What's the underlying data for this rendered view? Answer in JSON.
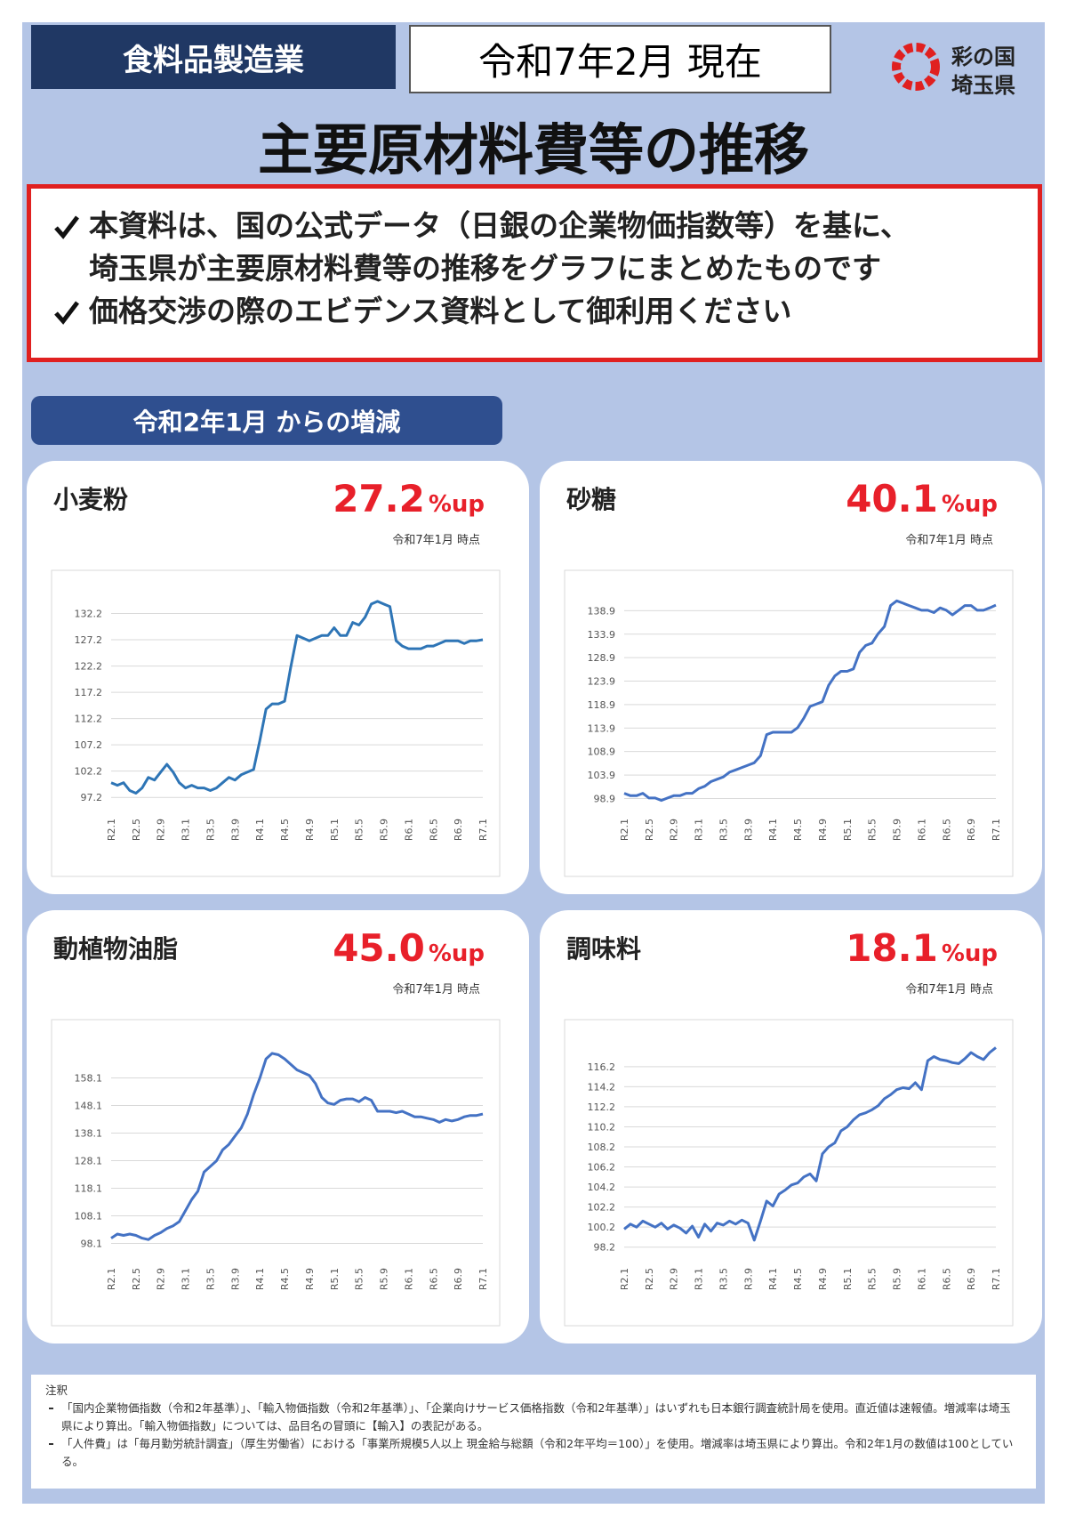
{
  "header": {
    "industry": "食料品製造業",
    "date": "令和7年2月 現在",
    "logo_line1": "彩の国",
    "logo_line2": "埼玉県",
    "title": "主要原材料費等の推移"
  },
  "notice": {
    "items": [
      {
        "lines": [
          "本資料は、国の公式データ（日銀の企業物価指数等）を基に、",
          "埼玉県が主要原材料費等の推移をグラフにまとめたものです"
        ]
      },
      {
        "lines": [
          "価格交渉の際のエビデンス資料として御利用ください"
        ]
      }
    ]
  },
  "section_label": "令和2年1月 からの増減",
  "chart_data": [
    {
      "type": "line",
      "title": "小麦粉",
      "change": 27.2,
      "change_unit": "%up",
      "as_of": "令和7年1月 時点",
      "categories": [
        "R2.1",
        null,
        null,
        null,
        "R2.5",
        null,
        null,
        null,
        "R2.9",
        null,
        null,
        null,
        "R3.1",
        null,
        null,
        null,
        "R3.5",
        null,
        null,
        null,
        "R3.9",
        null,
        null,
        null,
        "R4.1",
        null,
        null,
        null,
        "R4.5",
        null,
        null,
        null,
        "R4.9",
        null,
        null,
        null,
        "R5.1",
        null,
        null,
        null,
        "R5.5",
        null,
        null,
        null,
        "R5.9",
        null,
        null,
        null,
        "R6.1",
        null,
        null,
        null,
        "R6.5",
        null,
        null,
        null,
        "R6.9",
        null,
        null,
        null,
        "R7.1"
      ],
      "series": [
        {
          "color": "#2e75b6",
          "values": [
            100,
            99.5,
            100,
            98.5,
            98,
            99,
            101,
            100.5,
            102,
            103.5,
            102,
            100,
            99,
            99.5,
            99,
            99,
            98.5,
            99,
            100,
            101,
            100.5,
            101.5,
            102,
            102.5,
            108,
            114,
            115,
            115,
            115.5,
            122,
            128,
            127.5,
            127,
            127.5,
            128,
            128,
            129.5,
            128,
            128,
            130.5,
            130,
            131.5,
            134,
            134.5,
            134,
            133.5,
            127,
            126,
            125.5,
            125.5,
            125.5,
            126,
            126,
            126.5,
            127,
            127,
            127,
            126.5,
            127,
            127,
            127.2
          ]
        }
      ],
      "ylim": [
        95.2,
        137.2
      ],
      "yticks": [
        97.2,
        102.2,
        107.2,
        112.2,
        117.2,
        122.2,
        127.2,
        132.2
      ],
      "grid": true
    },
    {
      "type": "line",
      "title": "砂糖",
      "change": 40.1,
      "change_unit": "%up",
      "as_of": "令和7年1月 時点",
      "categories": [
        "R2.1",
        null,
        null,
        null,
        "R2.5",
        null,
        null,
        null,
        "R2.9",
        null,
        null,
        null,
        "R3.1",
        null,
        null,
        null,
        "R3.5",
        null,
        null,
        null,
        "R3.9",
        null,
        null,
        null,
        "R4.1",
        null,
        null,
        null,
        "R4.5",
        null,
        null,
        null,
        "R4.9",
        null,
        null,
        null,
        "R5.1",
        null,
        null,
        null,
        "R5.5",
        null,
        null,
        null,
        "R5.9",
        null,
        null,
        null,
        "R6.1",
        null,
        null,
        null,
        "R6.5",
        null,
        null,
        null,
        "R6.9",
        null,
        null,
        null,
        "R7.1"
      ],
      "series": [
        {
          "color": "#4472c4",
          "values": [
            100,
            99.5,
            99.5,
            100,
            99,
            99,
            98.5,
            99,
            99.5,
            99.5,
            100,
            100,
            101,
            101.5,
            102.5,
            103,
            103.5,
            104.5,
            105,
            105.5,
            106,
            106.5,
            108,
            112.5,
            113,
            113,
            113,
            113,
            114,
            116,
            118.5,
            119,
            119.5,
            123,
            125,
            126,
            126,
            126.5,
            130,
            131.5,
            132,
            134,
            135.5,
            140,
            141,
            140.5,
            140,
            139.5,
            139,
            139,
            138.5,
            139.5,
            139,
            138,
            139,
            140,
            140,
            139,
            139,
            139.5,
            140.1
          ]
        }
      ],
      "ylim": [
        96.9,
        143.9
      ],
      "yticks": [
        98.9,
        103.9,
        108.9,
        113.9,
        118.9,
        123.9,
        128.9,
        133.9,
        138.9
      ],
      "grid": true
    },
    {
      "type": "line",
      "title": "動植物油脂",
      "change": {
        "value": 45.0,
        "label": "45.0"
      },
      "change_unit": "%up",
      "as_of": "令和7年1月 時点",
      "categories": [
        "R2.1",
        null,
        null,
        null,
        "R2.5",
        null,
        null,
        null,
        "R2.9",
        null,
        null,
        null,
        "R3.1",
        null,
        null,
        null,
        "R3.5",
        null,
        null,
        null,
        "R3.9",
        null,
        null,
        null,
        "R4.1",
        null,
        null,
        null,
        "R4.5",
        null,
        null,
        null,
        "R4.9",
        null,
        null,
        null,
        "R5.1",
        null,
        null,
        null,
        "R5.5",
        null,
        null,
        null,
        "R5.9",
        null,
        null,
        null,
        "R6.1",
        null,
        null,
        null,
        "R6.5",
        null,
        null,
        null,
        "R6.9",
        null,
        null,
        null,
        "R7.1"
      ],
      "series": [
        {
          "color": "#4472c4",
          "values": [
            100,
            101.5,
            101,
            101.5,
            101,
            100,
            99.5,
            101,
            102,
            103.5,
            104.5,
            106,
            110,
            114,
            117,
            124,
            126,
            128,
            132,
            134,
            137,
            140,
            145,
            152,
            158,
            165,
            167,
            166.5,
            165,
            163,
            161,
            160,
            159,
            156,
            151,
            149,
            148.5,
            150,
            150.5,
            150.5,
            149.5,
            151,
            150,
            146,
            146,
            146,
            145.5,
            146,
            145,
            144,
            144,
            143.5,
            143,
            142,
            143,
            142.5,
            143,
            144,
            144.5,
            144.5,
            145
          ]
        }
      ],
      "ylim": [
        93.1,
        173.1
      ],
      "yticks": [
        98.1,
        108.1,
        118.1,
        128.1,
        138.1,
        148.1,
        158.1
      ],
      "grid": true
    },
    {
      "type": "line",
      "title": "調味料",
      "change": 18.1,
      "change_unit": "%up",
      "as_of": "令和7年1月 時点",
      "categories": [
        "R2.1",
        null,
        null,
        null,
        "R2.5",
        null,
        null,
        null,
        "R2.9",
        null,
        null,
        null,
        "R3.1",
        null,
        null,
        null,
        "R3.5",
        null,
        null,
        null,
        "R3.9",
        null,
        null,
        null,
        "R4.1",
        null,
        null,
        null,
        "R4.5",
        null,
        null,
        null,
        "R4.9",
        null,
        null,
        null,
        "R5.1",
        null,
        null,
        null,
        "R5.5",
        null,
        null,
        null,
        "R5.9",
        null,
        null,
        null,
        "R6.1",
        null,
        null,
        null,
        "R6.5",
        null,
        null,
        null,
        "R6.9",
        null,
        null,
        null,
        "R7.1"
      ],
      "series": [
        {
          "color": "#4472c4",
          "values": [
            100,
            100.5,
            100.2,
            100.8,
            100.5,
            100.2,
            100.6,
            100,
            100.4,
            100.1,
            99.6,
            100.3,
            99.2,
            100.5,
            99.8,
            100.6,
            100.4,
            100.8,
            100.5,
            100.9,
            100.6,
            98.9,
            100.8,
            102.8,
            102.3,
            103.5,
            103.9,
            104.4,
            104.6,
            105.2,
            105.5,
            104.8,
            107.5,
            108.2,
            108.6,
            109.8,
            110.2,
            110.9,
            111.4,
            111.6,
            111.9,
            112.3,
            113.0,
            113.4,
            113.9,
            114.1,
            114.0,
            114.6,
            113.9,
            116.8,
            117.2,
            116.9,
            116.8,
            116.6,
            116.5,
            117.0,
            117.6,
            117.2,
            116.9,
            117.6,
            118.1
          ]
        }
      ],
      "ylim": [
        97.2,
        119.2
      ],
      "yticks": [
        98.2,
        100.2,
        102.2,
        104.2,
        106.2,
        108.2,
        110.2,
        112.2,
        114.2,
        116.2
      ],
      "grid": true
    }
  ],
  "notes": {
    "title": "注釈",
    "items": [
      "「国内企業物価指数（令和2年基準）」、「輸入物価指数（令和2年基準）」、「企業向けサービス価格指数（令和2年基準）」はいずれも日本銀行調査統計局を使用。直近値は速報値。増減率は埼玉県により算出。「輸入物価指数」については、品目名の冒頭に【輸入】の表記がある。",
      "「人件費」は「毎月勤労統計調査」（厚生労働省）における「事業所規模5人以上 現金給与総額（令和2年平均＝100）」を使用。増減率は埼玉県により算出。令和2年1月の数値は100としている。"
    ]
  }
}
